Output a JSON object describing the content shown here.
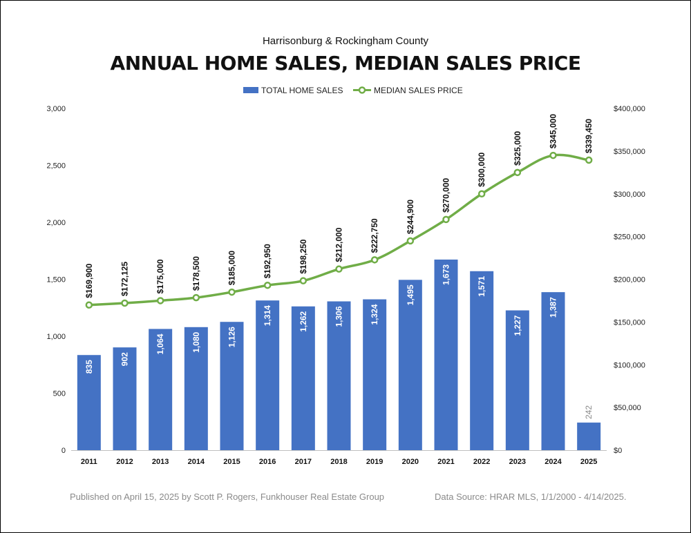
{
  "chart_data": {
    "type": "bar+line",
    "subtitle": "Harrisonburg & Rockingham County",
    "title": "ANNUAL HOME SALES, MEDIAN SALES PRICE",
    "categories": [
      "2011",
      "2012",
      "2013",
      "2014",
      "2015",
      "2016",
      "2017",
      "2018",
      "2019",
      "2020",
      "2021",
      "2022",
      "2023",
      "2024",
      "2025"
    ],
    "series": [
      {
        "name": "TOTAL HOME SALES",
        "type": "bar",
        "axis": "left",
        "color": "#4472C4",
        "values": [
          835,
          902,
          1064,
          1080,
          1126,
          1314,
          1262,
          1306,
          1324,
          1495,
          1673,
          1571,
          1227,
          1387,
          242
        ],
        "labels": [
          "835",
          "902",
          "1,064",
          "1,080",
          "1,126",
          "1,314",
          "1,262",
          "1,306",
          "1,324",
          "1,495",
          "1,673",
          "1,571",
          "1,227",
          "1,387",
          "242"
        ]
      },
      {
        "name": "MEDIAN SALES PRICE",
        "type": "line",
        "axis": "right",
        "color": "#70AD47",
        "values": [
          169900,
          172125,
          175000,
          178500,
          185000,
          192950,
          198250,
          212000,
          222750,
          244900,
          270000,
          300000,
          325000,
          345000,
          339450
        ],
        "labels": [
          "$169,900",
          "$172,125",
          "$175,000",
          "$178,500",
          "$185,000",
          "$192,950",
          "$198,250",
          "$212,000",
          "$222,750",
          "$244,900",
          "$270,000",
          "$300,000",
          "$325,000",
          "$345,000",
          "$339,450"
        ]
      }
    ],
    "y_left": {
      "lim": [
        0,
        3000
      ],
      "ticks": [
        0,
        500,
        1000,
        1500,
        2000,
        2500,
        3000
      ],
      "tick_labels": [
        "0",
        "500",
        "1,000",
        "1,500",
        "2,000",
        "2,500",
        "3,000"
      ]
    },
    "y_right": {
      "lim": [
        0,
        400000
      ],
      "ticks": [
        0,
        50000,
        100000,
        150000,
        200000,
        250000,
        300000,
        350000,
        400000
      ],
      "tick_labels": [
        "$0",
        "$50,000",
        "$100,000",
        "$150,000",
        "$200,000",
        "$250,000",
        "$300,000",
        "$350,000",
        "$400,000"
      ]
    },
    "grid": false,
    "legend_position": "top-center",
    "last_bar_label_color": "#8a8a8a"
  },
  "footer": {
    "published": "Published on April 15, 2025 by Scott P. Rogers, Funkhouser Real Estate Group",
    "source": "Data Source: HRAR MLS, 1/1/2000 - 4/14/2025."
  }
}
